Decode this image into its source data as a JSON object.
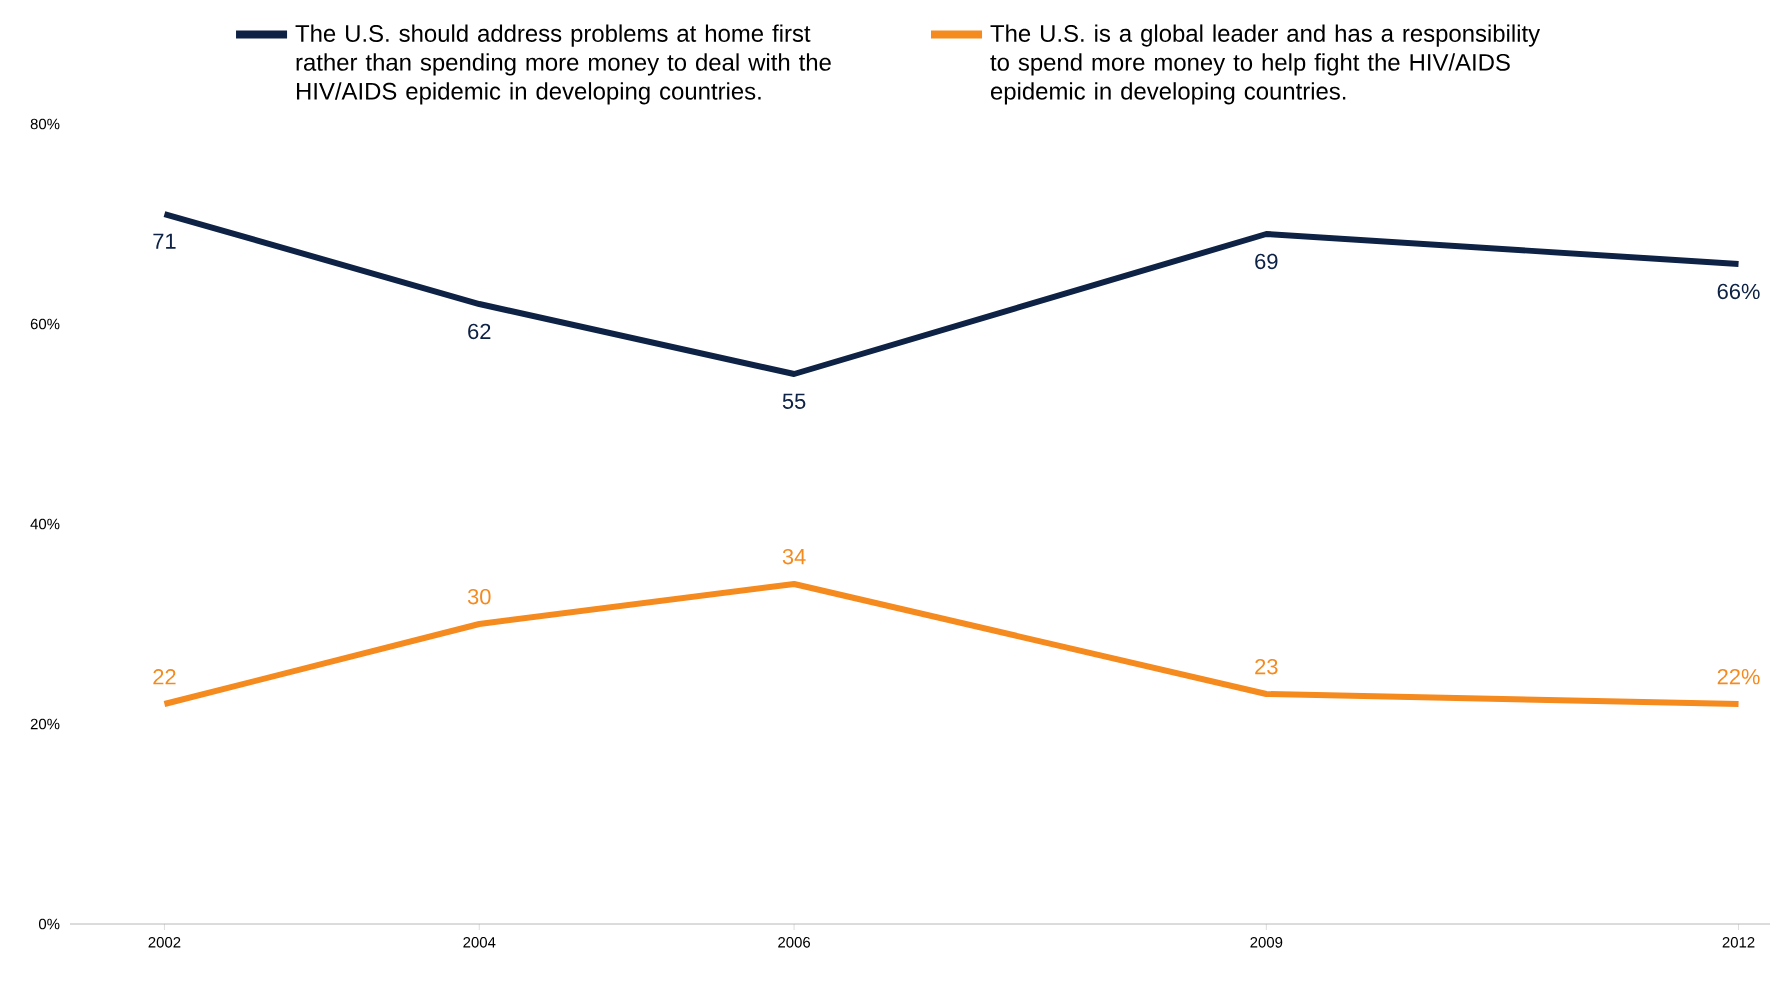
{
  "chart_data": {
    "type": "line",
    "x": [
      2002,
      2004,
      2006,
      2009,
      2012
    ],
    "xlim": [
      2001.4,
      2012.2
    ],
    "xticks": [
      2002,
      2004,
      2006,
      2009,
      2012
    ],
    "ylim": [
      0,
      80
    ],
    "yticks": [
      {
        "value": 0,
        "label": "0%"
      },
      {
        "value": 20,
        "label": "20%"
      },
      {
        "value": 40,
        "label": "40%"
      },
      {
        "value": 60,
        "label": "60%"
      },
      {
        "value": 80,
        "label": "80%"
      }
    ],
    "series": [
      {
        "name": "The U.S. should address problems at home first rather than spending more money to deal with the HIV/AIDS epidemic in developing countries.",
        "color": "#0e2245",
        "values": [
          71,
          62,
          55,
          69,
          66
        ],
        "value_labels": [
          "71",
          "62",
          "55",
          "69",
          "66%"
        ]
      },
      {
        "name": "The U.S. is a global leader and has a responsibility to spend more money to help fight the HIV/AIDS epidemic in developing countries.",
        "color": "#f58a1f",
        "values": [
          22,
          30,
          34,
          23,
          22
        ],
        "value_labels": [
          "22",
          "30",
          "34",
          "23",
          "22%"
        ]
      }
    ],
    "legend": "top",
    "grid": false,
    "marker": "none",
    "line_style": "solid"
  }
}
